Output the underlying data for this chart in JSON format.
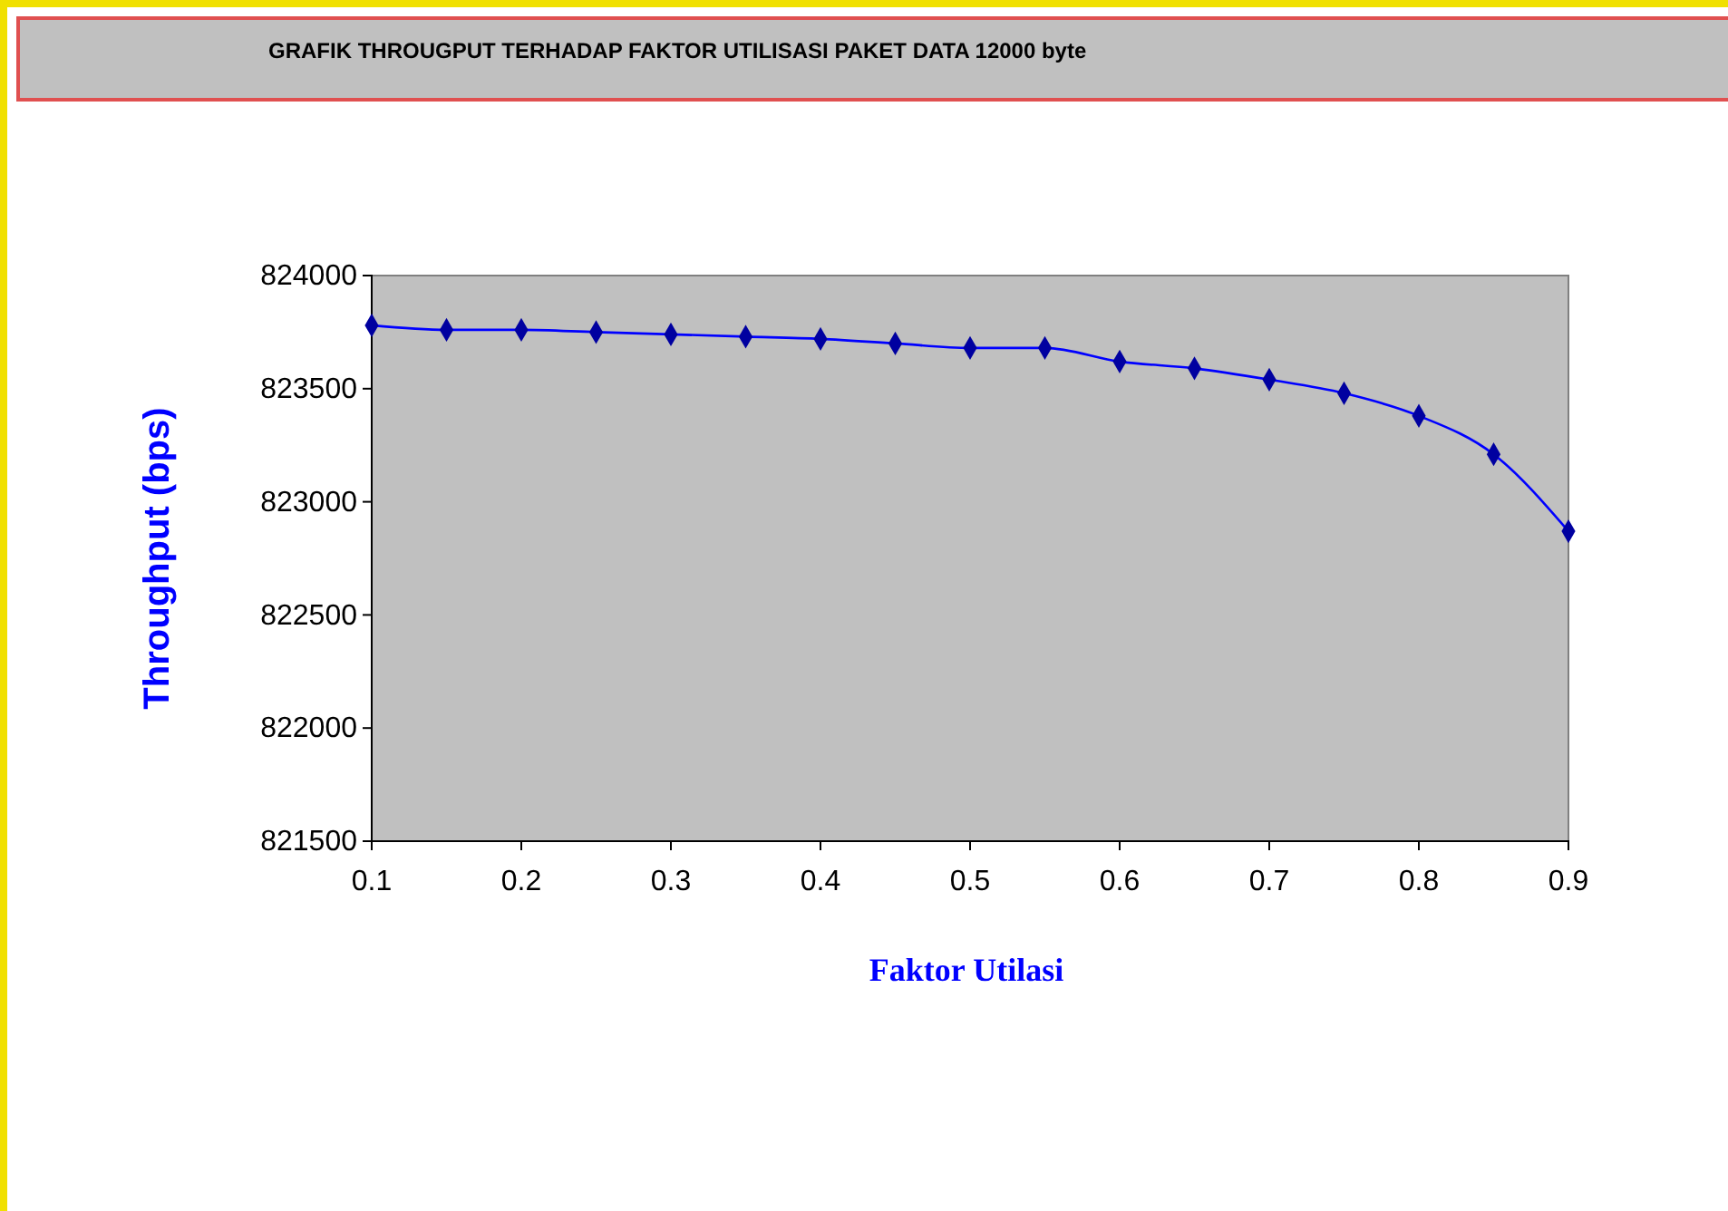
{
  "chart_data": {
    "type": "line",
    "title": "GRAFIK THROUGPUT TERHADAP FAKTOR UTILISASI PAKET DATA 12000 byte",
    "xlabel": "Faktor Utilasi",
    "ylabel": "Throughput (bps)",
    "x": [
      0.1,
      0.15,
      0.2,
      0.25,
      0.3,
      0.35,
      0.4,
      0.45,
      0.5,
      0.55,
      0.6,
      0.65,
      0.7,
      0.75,
      0.8,
      0.85,
      0.9
    ],
    "series": [
      {
        "color": "#0000ff",
        "values": [
          823780,
          823760,
          823760,
          823750,
          823740,
          823730,
          823720,
          823700,
          823680,
          823680,
          823620,
          823590,
          823540,
          823480,
          823380,
          823210,
          822870
        ]
      }
    ],
    "xlim": [
      0.1,
      0.9
    ],
    "xticks": [
      {
        "value": 0.1,
        "label": "0.1"
      },
      {
        "value": 0.2,
        "label": "0.2"
      },
      {
        "value": 0.3,
        "label": "0.3"
      },
      {
        "value": 0.4,
        "label": "0.4"
      },
      {
        "value": 0.5,
        "label": "0.5"
      },
      {
        "value": 0.6,
        "label": "0.6"
      },
      {
        "value": 0.7,
        "label": "0.7"
      },
      {
        "value": 0.8,
        "label": "0.8"
      },
      {
        "value": 0.9,
        "label": "0.9"
      }
    ],
    "ylim": [
      821500,
      824000
    ],
    "yticks": [
      821500,
      822000,
      822500,
      823000,
      823500,
      824000
    ],
    "grid": false,
    "marker": "diamond",
    "line_style": "solid"
  }
}
